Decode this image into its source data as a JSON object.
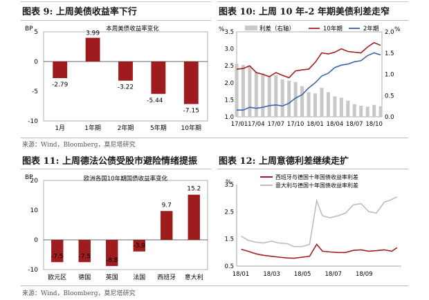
{
  "source_note": "来源：Wind，Bloomberg，莫尼塔研究",
  "fig9": {
    "heading": "图表 9:  上周美债收益率下行",
    "chart_data": {
      "type": "bar",
      "title": "本周美债收益率变化",
      "unit": "BP",
      "categories": [
        "1月",
        "1年期",
        "2年期",
        "5年期",
        "10年期"
      ],
      "values": [
        -2.79,
        3.99,
        -3.22,
        -5.44,
        -7.15
      ],
      "value_labels": [
        "-2.79",
        "3.99",
        "-3.22",
        "-5.44",
        "-7.15"
      ],
      "ylim": [
        -10,
        5
      ],
      "yticks": [
        5,
        0,
        -5,
        -10
      ],
      "bar_color": "#9e1b1e"
    }
  },
  "fig10": {
    "heading": "图表 10:  上周 10 年-2 年期美债利差走窄",
    "chart_data": {
      "type": "line",
      "left_unit": "%",
      "right_unit": "%",
      "ylim_left": [
        1.0,
        3.5
      ],
      "yticks_left": [
        3.5,
        3.0,
        2.5,
        2.0,
        1.5,
        1.0
      ],
      "ylim_right": [
        0.0,
        2.0
      ],
      "yticks_right": [
        2.0,
        1.5,
        1.0,
        0.5,
        0.0
      ],
      "x_ticks": [
        "17/01",
        "17/04",
        "17/07",
        "17/10",
        "18/01",
        "18/04",
        "18/07",
        "18/10"
      ],
      "series": [
        {
          "name": "利差（右轴）",
          "type": "bar",
          "axis": "right",
          "color": "#c8c8c8",
          "x": [
            "17/01",
            "17/02",
            "17/03",
            "17/04",
            "17/05",
            "17/06",
            "17/07",
            "17/08",
            "17/09",
            "17/10",
            "17/11",
            "17/12",
            "18/01",
            "18/02",
            "18/03",
            "18/04",
            "18/05",
            "18/06",
            "18/07",
            "18/08",
            "18/09",
            "18/10",
            "18/11"
          ],
          "values": [
            1.25,
            1.22,
            1.18,
            1.05,
            1.02,
            0.95,
            0.98,
            0.88,
            0.85,
            0.82,
            0.72,
            0.58,
            0.55,
            0.68,
            0.58,
            0.48,
            0.45,
            0.38,
            0.3,
            0.26,
            0.24,
            0.28,
            0.25
          ]
        },
        {
          "name": "10年期",
          "type": "line",
          "axis": "left",
          "color": "#a21d1d",
          "x": [
            "17/01",
            "17/02",
            "17/03",
            "17/04",
            "17/05",
            "17/06",
            "17/07",
            "17/08",
            "17/09",
            "17/10",
            "17/11",
            "17/12",
            "18/01",
            "18/02",
            "18/03",
            "18/04",
            "18/05",
            "18/06",
            "18/07",
            "18/08",
            "18/09",
            "18/10",
            "18/11"
          ],
          "values": [
            2.4,
            2.42,
            2.5,
            2.3,
            2.25,
            2.18,
            2.3,
            2.22,
            2.15,
            2.35,
            2.38,
            2.4,
            2.6,
            2.88,
            2.85,
            2.9,
            3.0,
            2.92,
            2.9,
            2.88,
            3.05,
            3.18,
            3.1
          ]
        },
        {
          "name": "2年期",
          "type": "line",
          "axis": "left",
          "color": "#3a63a8",
          "x": [
            "17/01",
            "17/02",
            "17/03",
            "17/04",
            "17/05",
            "17/06",
            "17/07",
            "17/08",
            "17/09",
            "17/10",
            "17/11",
            "17/12",
            "18/01",
            "18/02",
            "18/03",
            "18/04",
            "18/05",
            "18/06",
            "18/07",
            "18/08",
            "18/09",
            "18/10",
            "18/11"
          ],
          "values": [
            1.2,
            1.2,
            1.28,
            1.25,
            1.28,
            1.33,
            1.35,
            1.32,
            1.4,
            1.55,
            1.65,
            1.85,
            2.0,
            2.2,
            2.28,
            2.45,
            2.52,
            2.55,
            2.62,
            2.65,
            2.8,
            2.88,
            2.82
          ]
        }
      ]
    }
  },
  "fig11": {
    "heading": "图表 11:  上周德法公债受股市避险情绪提振",
    "chart_data": {
      "type": "bar",
      "title": "欧洲各国10年期国债收益率变化",
      "unit": "BP",
      "categories": [
        "欧元区",
        "德国",
        "英国",
        "法国",
        "西班牙",
        "意大利"
      ],
      "values": [
        -7.5,
        -7.5,
        -8.8,
        -3.9,
        9.7,
        15.2
      ],
      "value_labels": [
        "-7.5",
        "-7.5",
        "-8.8",
        "-3.9",
        "9.7",
        "15.2"
      ],
      "ylim": [
        -10,
        20
      ],
      "yticks": [
        20,
        10,
        0,
        -10
      ],
      "bar_color": "#9e1b1e"
    }
  },
  "fig12": {
    "heading": "图表 12:  上周意德利差继续走扩",
    "chart_data": {
      "type": "line",
      "unit": "%",
      "ylim": [
        0.5,
        3.5
      ],
      "yticks": [
        3.5,
        2.5,
        1.5,
        0.5
      ],
      "x_ticks": [
        "18/01",
        "18/03",
        "18/05",
        "18/07",
        "18/09"
      ],
      "series": [
        {
          "name": "西班牙与德国十年国债收益率利差",
          "color": "#a21d1d",
          "x": [
            "18/01/02",
            "18/01/15",
            "18/02/01",
            "18/02/15",
            "18/03/01",
            "18/03/15",
            "18/04/01",
            "18/04/15",
            "18/05/01",
            "18/05/15",
            "18/05/29",
            "18/06/10",
            "18/06/25",
            "18/07/10",
            "18/07/25",
            "18/08/10",
            "18/08/25",
            "18/09/10",
            "18/09/25",
            "18/10/10",
            "18/10/25",
            "18/11/05"
          ],
          "values": [
            1.12,
            1.05,
            0.95,
            0.9,
            0.86,
            0.83,
            0.8,
            0.79,
            0.83,
            0.86,
            1.3,
            1.05,
            1.02,
            1.0,
            1.0,
            1.08,
            1.1,
            1.05,
            1.07,
            1.1,
            1.05,
            1.18
          ]
        },
        {
          "name": "意大利与德国十年国债收益率利差",
          "color": "#bdbdbd",
          "x": [
            "18/01/02",
            "18/01/15",
            "18/02/01",
            "18/02/15",
            "18/03/01",
            "18/03/15",
            "18/04/01",
            "18/04/15",
            "18/05/01",
            "18/05/15",
            "18/05/29",
            "18/06/10",
            "18/06/25",
            "18/07/10",
            "18/07/25",
            "18/08/10",
            "18/08/25",
            "18/09/10",
            "18/09/25",
            "18/10/10",
            "18/10/25",
            "18/11/05"
          ],
          "values": [
            1.6,
            1.45,
            1.38,
            1.35,
            1.42,
            1.35,
            1.33,
            1.22,
            1.22,
            1.3,
            2.9,
            2.35,
            2.28,
            2.35,
            2.45,
            2.75,
            2.8,
            2.5,
            2.45,
            2.85,
            2.95,
            3.05
          ]
        }
      ]
    }
  }
}
